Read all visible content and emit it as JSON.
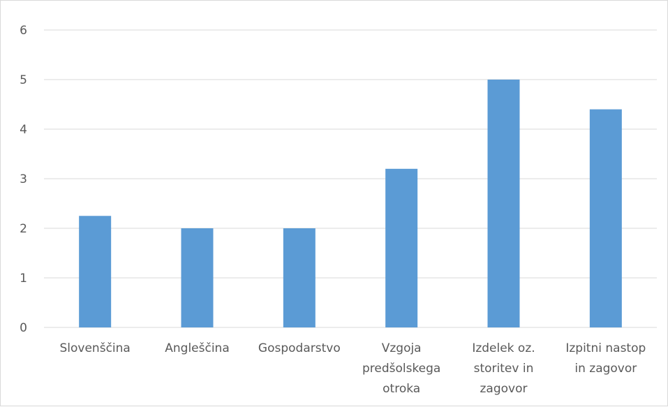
{
  "chart_data": {
    "type": "bar",
    "title": "",
    "xlabel": "",
    "ylabel": "",
    "categories": [
      "Slovenščina",
      "Angleščina",
      "Gospodarstvo",
      "Vzgoja predšolskega otroka",
      "Izdelek oz. storitev in zagovor",
      "Izpitni nastop in zagovor"
    ],
    "category_lines": [
      [
        "Slovenščina"
      ],
      [
        "Angleščina"
      ],
      [
        "Gospodarstvo"
      ],
      [
        "Vzgoja",
        "predšolskega",
        "otroka"
      ],
      [
        "Izdelek oz.",
        "storitev in",
        "zagovor"
      ],
      [
        "Izpitni nastop",
        "in zagovor"
      ]
    ],
    "values": [
      2.25,
      2.0,
      2.0,
      3.2,
      5.0,
      4.4
    ],
    "ylim": [
      0,
      6
    ],
    "yticks": [
      "0",
      "1",
      "2",
      "3",
      "4",
      "5",
      "6"
    ],
    "grid": true,
    "legend": "none",
    "bar_color": "#5b9bd5",
    "grid_color": "#d9d9d9"
  }
}
